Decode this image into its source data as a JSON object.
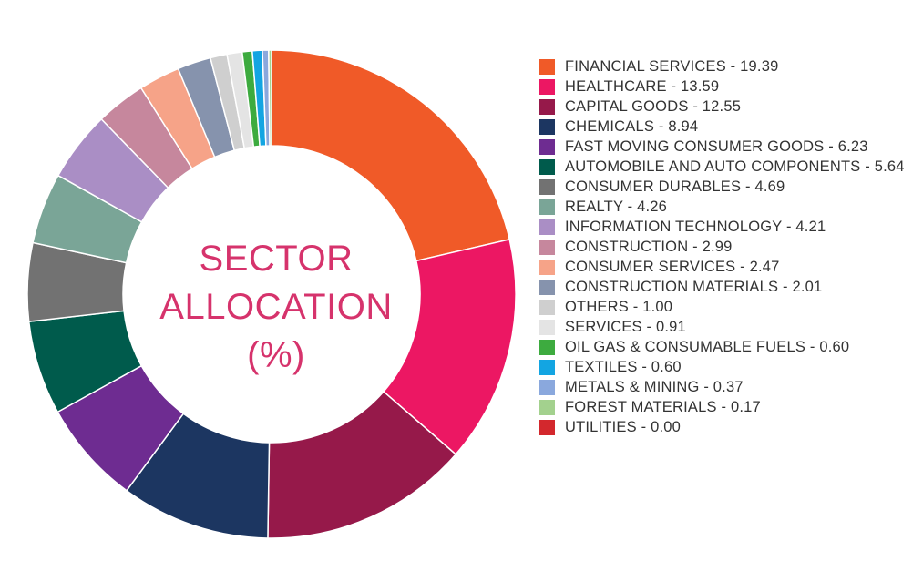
{
  "chart_data": {
    "type": "pie",
    "style": "donut",
    "title": [
      "SECTOR",
      "ALLOCATION",
      "(%)"
    ],
    "legend_placement": "right",
    "series": [
      {
        "label": "FINANCIAL SERVICES - 19.39",
        "name": "FINANCIAL SERVICES",
        "value": 19.39,
        "color": "#f05a28"
      },
      {
        "label": "HEALTHCARE - 13.59",
        "name": "HEALTHCARE",
        "value": 13.59,
        "color": "#ec1763"
      },
      {
        "label": "CAPITAL GOODS - 12.55",
        "name": "CAPITAL GOODS",
        "value": 12.55,
        "color": "#96194a"
      },
      {
        "label": "CHEMICALS - 8.94",
        "name": "CHEMICALS",
        "value": 8.94,
        "color": "#1c3661"
      },
      {
        "label": "FAST MOVING CONSUMER GOODS - 6.23",
        "name": "FAST MOVING CONSUMER GOODS",
        "value": 6.23,
        "color": "#6e2c91"
      },
      {
        "label": "AUTOMOBILE AND AUTO COMPONENTS - 5.64",
        "name": "AUTOMOBILE AND AUTO COMPONENTS",
        "value": 5.64,
        "color": "#005b4c"
      },
      {
        "label": "CONSUMER DURABLES - 4.69",
        "name": "CONSUMER DURABLES",
        "value": 4.69,
        "color": "#727272"
      },
      {
        "label": "REALTY - 4.26",
        "name": "REALTY",
        "value": 4.26,
        "color": "#7aa597"
      },
      {
        "label": "INFORMATION TECHNOLOGY - 4.21",
        "name": "INFORMATION TECHNOLOGY",
        "value": 4.21,
        "color": "#aa8ec5"
      },
      {
        "label": "CONSTRUCTION - 2.99",
        "name": "CONSTRUCTION",
        "value": 2.99,
        "color": "#c6879d"
      },
      {
        "label": "CONSUMER SERVICES - 2.47",
        "name": "CONSUMER SERVICES",
        "value": 2.47,
        "color": "#f6a388"
      },
      {
        "label": "CONSTRUCTION MATERIALS - 2.01",
        "name": "CONSTRUCTION MATERIALS",
        "value": 2.01,
        "color": "#8693ad"
      },
      {
        "label": "OTHERS - 1.00",
        "name": "OTHERS",
        "value": 1.0,
        "color": "#cfcfcf"
      },
      {
        "label": "SERVICES - 0.91",
        "name": "SERVICES",
        "value": 0.91,
        "color": "#e4e4e4"
      },
      {
        "label": "OIL GAS & CONSUMABLE FUELS - 0.60",
        "name": "OIL GAS & CONSUMABLE FUELS",
        "value": 0.6,
        "color": "#3dab3f"
      },
      {
        "label": "TEXTILES - 0.60",
        "name": "TEXTILES",
        "value": 0.6,
        "color": "#13a5e2"
      },
      {
        "label": "METALS & MINING - 0.37",
        "name": "METALS & MINING",
        "value": 0.37,
        "color": "#8aa8dd"
      },
      {
        "label": "FOREST MATERIALS - 0.17",
        "name": "FOREST MATERIALS",
        "value": 0.17,
        "color": "#a3d18e"
      },
      {
        "label": "UTILITIES - 0.00",
        "name": "UTILITIES",
        "value": 0.0,
        "color": "#d3282d"
      }
    ]
  }
}
